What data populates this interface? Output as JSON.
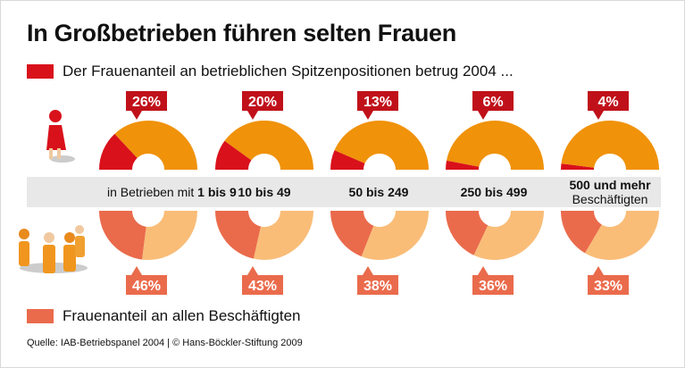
{
  "title": "In Großbetrieben führen selten Frauen",
  "chart_data": {
    "type": "pie",
    "title": "In Großbetrieben führen selten Frauen",
    "categories": [
      "1 bis 9",
      "10 bis 49",
      "50 bis 249",
      "250 bis 499",
      "500 und mehr Beschäftigten"
    ],
    "category_prefix": "in Betrieben mit",
    "category_labels": [
      "1 bis 9",
      "10 bis 49",
      "50 bis 249",
      "250 bis 499",
      "500 und mehr",
      "Beschäftigten"
    ],
    "series": [
      {
        "name": "Der Frauenanteil an betrieblichen Spitzenpositionen betrug 2004 ...",
        "values": [
          26,
          20,
          13,
          6,
          4
        ],
        "labels": [
          "26%",
          "20%",
          "13%",
          "6%",
          "4%"
        ],
        "color": "#d9111b",
        "rest_color": "#f0920a"
      },
      {
        "name": "Frauenanteil an allen Beschäftigten",
        "values": [
          46,
          43,
          38,
          36,
          33
        ],
        "labels": [
          "46%",
          "43%",
          "38%",
          "36%",
          "33%"
        ],
        "color": "#ea6b4c",
        "rest_color": "#f9bd78"
      }
    ],
    "unit": "%"
  },
  "legend": {
    "top": "Der Frauenanteil an betrieblichen Spitzenpositionen betrug 2004 ...",
    "bottom": "Frauenanteil an allen Beschäftigten"
  },
  "source": "Quelle: IAB-Betriebspanel 2004 | © Hans-Böckler-Stiftung 2009"
}
